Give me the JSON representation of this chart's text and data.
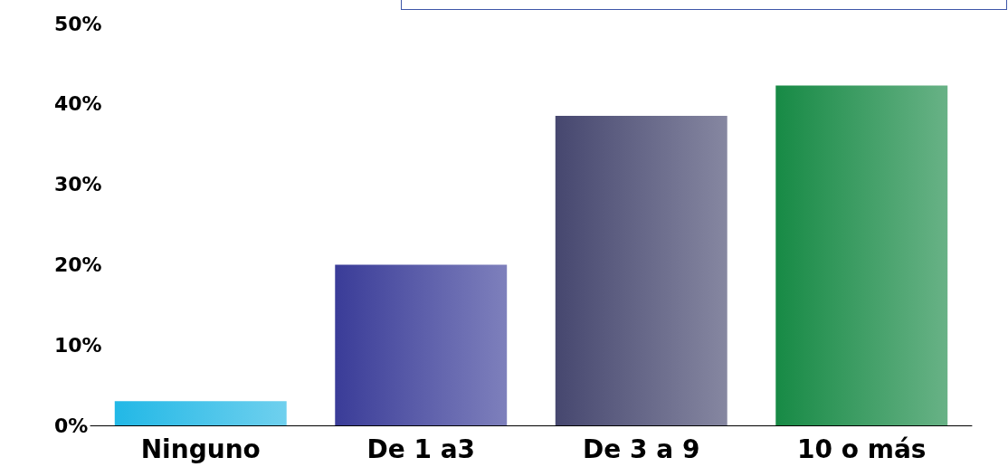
{
  "chart_data": {
    "type": "bar",
    "categories": [
      "Ninguno",
      "De 1 a3",
      "De 3 a 9",
      "10 o más"
    ],
    "values": [
      3,
      20,
      38.5,
      42.3
    ],
    "colors": [
      "#22b8e6",
      "#3a3c98",
      "#46476f",
      "#178a45"
    ],
    "ylim": [
      0,
      50
    ],
    "yticks": [
      {
        "value": 0,
        "label": "0%"
      },
      {
        "value": 10,
        "label": "10%"
      },
      {
        "value": 20,
        "label": "20%"
      },
      {
        "value": 30,
        "label": "30%"
      },
      {
        "value": 40,
        "label": "40%"
      },
      {
        "value": 50,
        "label": "50%"
      }
    ],
    "grid": false
  }
}
